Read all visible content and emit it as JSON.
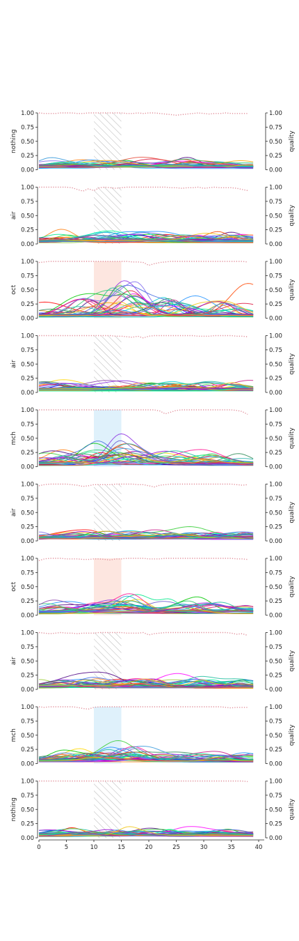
{
  "colors": {
    "quality_line": "#e08a96",
    "hatch": "#b5b5b5",
    "oct_fill": "#fde6e0",
    "mch_fill": "#dff1fb",
    "axis": "#222222"
  },
  "chart_data": {
    "type": "line",
    "subplot_count": 10,
    "x_ticks": [
      "0",
      "5",
      "10",
      "15",
      "20",
      "25",
      "30",
      "35",
      "40"
    ],
    "xlim": [
      0,
      40
    ],
    "left_ylim": [
      0,
      1
    ],
    "right_ylim": [
      0,
      1
    ],
    "y_ticks": [
      "0.00",
      "0.25",
      "0.50",
      "0.75",
      "1.00"
    ],
    "right_ylabel": "quality",
    "stimulus_window": [
      10,
      15
    ],
    "series_per_panel": 32,
    "quality_series_style": "dotted",
    "panels": [
      {
        "ylabel": "nothing",
        "window_style": "hatched",
        "quality": [
          1.0,
          0.99,
          0.99,
          0.99,
          1.0,
          1.0,
          1.0,
          0.99,
          0.99,
          1.0,
          1.0,
          1.0,
          1.0,
          1.0,
          1.0,
          1.0,
          0.99,
          0.99,
          1.0,
          0.99,
          1.0,
          1.0,
          0.99,
          0.98,
          0.97,
          0.96,
          0.97,
          0.98,
          0.99,
          1.0,
          0.99,
          0.98,
          0.99,
          0.99,
          1.0,
          0.99,
          0.99,
          0.99,
          0.99
        ],
        "response_peaks": [
          0.12,
          0.15,
          0.18,
          0.2,
          0.17
        ]
      },
      {
        "ylabel": "air",
        "window_style": "hatched",
        "quality": [
          1.0,
          1.0,
          1.0,
          1.0,
          1.0,
          1.0,
          0.99,
          0.96,
          0.93,
          0.97,
          0.94,
          0.99,
          1.0,
          0.99,
          0.98,
          0.99,
          1.0,
          1.0,
          1.0,
          1.0,
          1.0,
          1.0,
          1.0,
          1.0,
          0.99,
          0.99,
          0.98,
          0.99,
          0.99,
          1.0,
          0.98,
          0.99,
          1.0,
          0.99,
          0.99,
          0.99,
          0.98,
          0.96,
          0.94
        ],
        "response_peaks": [
          0.2,
          0.24,
          0.18,
          0.15,
          0.14
        ]
      },
      {
        "ylabel": "oct",
        "window_style": "oct",
        "quality": [
          0.98,
          0.99,
          1.0,
          1.0,
          1.0,
          1.0,
          1.0,
          1.0,
          1.0,
          1.0,
          1.0,
          1.0,
          1.0,
          1.0,
          1.0,
          1.0,
          1.0,
          0.99,
          0.99,
          0.98,
          0.93,
          0.96,
          0.98,
          0.99,
          1.0,
          1.0,
          1.0,
          1.0,
          1.0,
          1.0,
          1.0,
          1.0,
          1.0,
          1.0,
          1.0,
          1.0,
          1.0,
          1.0,
          0.99
        ],
        "response_peaks": [
          0.55,
          0.48,
          0.4,
          0.3,
          0.22
        ]
      },
      {
        "ylabel": "air",
        "window_style": "hatched",
        "quality": [
          1.0,
          1.0,
          1.0,
          1.0,
          1.0,
          1.0,
          1.0,
          1.0,
          1.0,
          1.0,
          1.0,
          1.0,
          1.0,
          1.0,
          0.99,
          0.99,
          0.98,
          0.97,
          0.99,
          0.96,
          0.99,
          1.0,
          1.0,
          1.0,
          1.0,
          1.0,
          1.0,
          1.0,
          1.0,
          0.99,
          0.99,
          0.99,
          1.0,
          1.0,
          1.0,
          1.0,
          0.99,
          0.99,
          0.98
        ],
        "response_peaks": [
          0.22,
          0.18,
          0.15,
          0.14,
          0.12
        ]
      },
      {
        "ylabel": "mch",
        "window_style": "mch",
        "quality": [
          1.0,
          1.0,
          1.0,
          1.0,
          1.0,
          1.0,
          1.0,
          1.0,
          1.0,
          1.0,
          1.0,
          1.0,
          1.0,
          1.0,
          1.0,
          1.0,
          1.0,
          1.0,
          1.0,
          1.0,
          1.0,
          1.0,
          0.98,
          0.93,
          0.96,
          0.99,
          1.0,
          1.0,
          1.0,
          1.0,
          1.0,
          1.0,
          1.0,
          1.0,
          1.0,
          1.0,
          0.99,
          0.97,
          0.92
        ],
        "response_peaks": [
          0.38,
          0.32,
          0.28,
          0.22,
          0.17
        ]
      },
      {
        "ylabel": "air",
        "window_style": "hatched",
        "quality": [
          0.97,
          0.99,
          1.0,
          1.0,
          1.0,
          1.0,
          0.99,
          0.98,
          0.96,
          0.97,
          0.99,
          0.99,
          0.99,
          0.99,
          1.0,
          1.0,
          1.0,
          1.0,
          0.99,
          0.99,
          0.97,
          0.95,
          0.98,
          0.99,
          1.0,
          1.0,
          1.0,
          1.0,
          1.0,
          1.0,
          1.0,
          1.0,
          1.0,
          1.0,
          1.0,
          1.0,
          0.99,
          0.98,
          0.99
        ],
        "response_peaks": [
          0.2,
          0.18,
          0.16,
          0.14,
          0.12
        ]
      },
      {
        "ylabel": "oct",
        "window_style": "oct",
        "quality": [
          0.96,
          0.99,
          1.0,
          1.0,
          1.0,
          0.99,
          0.99,
          0.99,
          0.98,
          0.98,
          0.99,
          0.99,
          0.98,
          0.97,
          0.99,
          0.99,
          1.0,
          1.0,
          1.0,
          1.0,
          0.99,
          0.99,
          0.99,
          1.0,
          1.0,
          1.0,
          1.0,
          1.0,
          1.0,
          1.0,
          1.0,
          1.0,
          1.0,
          1.0,
          1.0,
          1.0,
          0.99,
          0.99,
          0.98
        ],
        "response_peaks": [
          0.3,
          0.25,
          0.2,
          0.17,
          0.14
        ]
      },
      {
        "ylabel": "air",
        "window_style": "hatched",
        "quality": [
          1.0,
          0.99,
          0.98,
          0.99,
          1.0,
          0.99,
          0.99,
          0.98,
          0.99,
          0.99,
          0.99,
          1.0,
          1.0,
          1.0,
          1.0,
          1.0,
          0.99,
          0.99,
          0.99,
          1.0,
          0.96,
          0.98,
          0.99,
          1.0,
          1.0,
          1.0,
          1.0,
          1.0,
          1.0,
          1.0,
          1.0,
          1.0,
          1.0,
          1.0,
          1.0,
          0.99,
          0.97,
          0.98,
          0.95
        ],
        "response_peaks": [
          0.25,
          0.22,
          0.19,
          0.16,
          0.14
        ]
      },
      {
        "ylabel": "mch",
        "window_style": "mch",
        "quality": [
          1.0,
          0.99,
          1.0,
          1.0,
          1.0,
          1.0,
          1.0,
          0.99,
          0.97,
          0.96,
          0.99,
          1.0,
          1.0,
          1.0,
          1.0,
          1.0,
          1.0,
          1.0,
          1.0,
          1.0,
          1.0,
          1.0,
          1.0,
          1.0,
          1.0,
          1.0,
          1.0,
          1.0,
          1.0,
          1.0,
          1.0,
          1.0,
          1.0,
          1.0,
          0.99,
          0.98,
          0.99,
          0.99,
          0.99
        ],
        "response_peaks": [
          0.24,
          0.22,
          0.2,
          0.18,
          0.15
        ]
      },
      {
        "ylabel": "nothing",
        "window_style": "hatched",
        "quality": [
          1.0,
          1.0,
          1.0,
          1.0,
          1.0,
          1.0,
          1.0,
          1.0,
          1.0,
          1.0,
          1.0,
          1.0,
          1.0,
          1.0,
          1.0,
          1.0,
          1.0,
          1.0,
          1.0,
          1.0,
          1.0,
          1.0,
          1.0,
          1.0,
          1.0,
          1.0,
          1.0,
          1.0,
          1.0,
          1.0,
          1.0,
          1.0,
          1.0,
          1.0,
          1.0,
          1.0,
          1.0,
          1.0,
          0.99
        ],
        "response_peaks": [
          0.18,
          0.15,
          0.13,
          0.12,
          0.2
        ]
      }
    ]
  }
}
